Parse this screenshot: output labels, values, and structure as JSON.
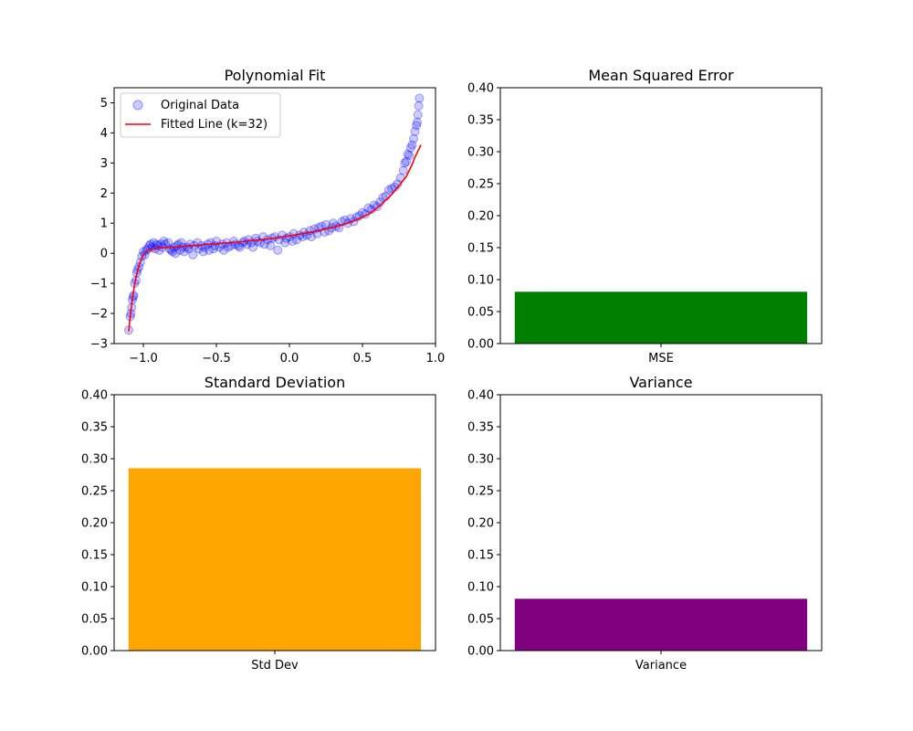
{
  "chart_data": [
    {
      "type": "scatter",
      "title": "Polynomial Fit",
      "xlabel": "",
      "ylabel": "",
      "xlim": [
        -1.2,
        1.0
      ],
      "ylim": [
        -3,
        5.5
      ],
      "xticks": [
        -1.0,
        -0.5,
        0.0,
        0.5,
        1.0
      ],
      "xtick_labels": [
        "−1.0",
        "−0.5",
        "0.0",
        "0.5",
        "1.0"
      ],
      "yticks": [
        -3,
        -2,
        -1,
        0,
        1,
        2,
        3,
        4,
        5
      ],
      "ytick_labels": [
        "−3",
        "−2",
        "−1",
        "0",
        "1",
        "2",
        "3",
        "4",
        "5"
      ],
      "grid": false,
      "legend": "upper-left",
      "series": [
        {
          "name": "Original Data",
          "kind": "scatter",
          "color": "#0000ff",
          "x": [
            -1.1,
            -1.09,
            -1.085,
            -1.08,
            -1.075,
            -1.07,
            -1.065,
            -1.06,
            -1.05,
            -1.045,
            -1.04,
            -1.03,
            -1.02,
            -1.01,
            -1.0,
            -0.99,
            -0.98,
            -0.97,
            -0.96,
            -0.95,
            -0.94,
            -0.93,
            -0.92,
            -0.91,
            -0.9,
            -0.89,
            -0.88,
            -0.87,
            -0.86,
            -0.85,
            -0.83,
            -0.82,
            -0.81,
            -0.8,
            -0.79,
            -0.78,
            -0.77,
            -0.76,
            -0.75,
            -0.74,
            -0.73,
            -0.72,
            -0.7,
            -0.69,
            -0.68,
            -0.66,
            -0.65,
            -0.63,
            -0.62,
            -0.6,
            -0.59,
            -0.58,
            -0.56,
            -0.55,
            -0.54,
            -0.52,
            -0.51,
            -0.5,
            -0.48,
            -0.46,
            -0.45,
            -0.43,
            -0.42,
            -0.4,
            -0.38,
            -0.37,
            -0.35,
            -0.34,
            -0.32,
            -0.31,
            -0.29,
            -0.28,
            -0.26,
            -0.25,
            -0.23,
            -0.22,
            -0.2,
            -0.18,
            -0.17,
            -0.15,
            -0.13,
            -0.12,
            -0.1,
            -0.08,
            -0.07,
            -0.05,
            -0.03,
            -0.02,
            0.0,
            0.02,
            0.03,
            0.05,
            0.07,
            0.09,
            0.1,
            0.12,
            0.14,
            0.15,
            0.17,
            0.19,
            0.2,
            0.22,
            0.24,
            0.25,
            0.27,
            0.29,
            0.3,
            0.32,
            0.34,
            0.36,
            0.38,
            0.4,
            0.42,
            0.44,
            0.46,
            0.48,
            0.5,
            0.52,
            0.54,
            0.56,
            0.58,
            0.6,
            0.62,
            0.64,
            0.66,
            0.68,
            0.7,
            0.72,
            0.74,
            0.76,
            0.78,
            0.79,
            0.8,
            0.81,
            0.82,
            0.83,
            0.84,
            0.85,
            0.86,
            0.87,
            0.875,
            0.88,
            0.885,
            0.89
          ],
          "y": [
            -2.55,
            -2.1,
            -2.0,
            -1.8,
            -1.55,
            -1.45,
            -1.4,
            -1.0,
            -0.9,
            -0.65,
            -0.55,
            -0.45,
            -0.3,
            -0.1,
            0.05,
            -0.05,
            0.1,
            0.15,
            0.25,
            0.3,
            0.2,
            0.35,
            0.15,
            0.3,
            0.25,
            0.1,
            0.3,
            0.2,
            0.4,
            0.3,
            0.35,
            0.15,
            0.1,
            0.05,
            0.2,
            0.0,
            0.25,
            0.3,
            0.1,
            0.35,
            0.2,
            0.05,
            0.2,
            0.15,
            0.3,
            -0.05,
            0.25,
            0.35,
            0.15,
            0.25,
            0.05,
            0.2,
            0.3,
            0.1,
            0.35,
            0.15,
            0.25,
            0.4,
            0.2,
            0.3,
            0.1,
            0.35,
            0.2,
            0.25,
            0.4,
            0.3,
            0.25,
            0.2,
            0.35,
            0.4,
            0.3,
            0.45,
            0.35,
            0.2,
            0.5,
            0.4,
            0.35,
            0.55,
            0.3,
            0.45,
            0.25,
            0.5,
            0.55,
            0.1,
            0.45,
            0.6,
            0.35,
            0.5,
            0.55,
            0.4,
            0.65,
            0.45,
            0.6,
            0.55,
            0.7,
            0.6,
            0.75,
            0.55,
            0.8,
            0.65,
            0.85,
            0.9,
            0.7,
            0.95,
            0.75,
            0.85,
            1.0,
            0.9,
            0.85,
            1.05,
            1.1,
            1.0,
            1.15,
            1.05,
            1.2,
            1.25,
            1.35,
            1.3,
            1.5,
            1.45,
            1.6,
            1.55,
            1.7,
            1.85,
            1.9,
            2.1,
            2.15,
            2.2,
            2.3,
            2.5,
            2.75,
            3.0,
            3.05,
            3.3,
            3.25,
            3.5,
            3.6,
            3.8,
            4.05,
            4.25,
            4.35,
            4.6,
            4.9,
            5.15
          ]
        },
        {
          "name": "Fitted Line (k=32)",
          "kind": "line",
          "color": "#ff0000",
          "x": [
            -1.1,
            -1.09,
            -1.08,
            -1.07,
            -1.06,
            -1.05,
            -1.04,
            -1.03,
            -1.02,
            -1.01,
            -1.0,
            -0.98,
            -0.95,
            -0.9,
            -0.85,
            -0.8,
            -0.7,
            -0.6,
            -0.5,
            -0.4,
            -0.3,
            -0.2,
            -0.1,
            0.0,
            0.1,
            0.2,
            0.3,
            0.4,
            0.5,
            0.55,
            0.6,
            0.65,
            0.7,
            0.75,
            0.8,
            0.82,
            0.84,
            0.86,
            0.88,
            0.9
          ],
          "y": [
            -2.6,
            -2.1,
            -1.7,
            -1.35,
            -1.05,
            -0.8,
            -0.6,
            -0.42,
            -0.28,
            -0.16,
            -0.05,
            0.05,
            0.13,
            0.17,
            0.19,
            0.2,
            0.24,
            0.28,
            0.32,
            0.35,
            0.4,
            0.45,
            0.5,
            0.58,
            0.66,
            0.75,
            0.86,
            1.0,
            1.2,
            1.32,
            1.5,
            1.72,
            1.95,
            2.25,
            2.55,
            2.75,
            2.95,
            3.2,
            3.4,
            3.6
          ]
        }
      ]
    },
    {
      "type": "bar",
      "title": "Mean Squared Error",
      "xlabel": "",
      "ylabel": "",
      "categories": [
        "MSE"
      ],
      "values": [
        0.081
      ],
      "color": "#008000",
      "ylim": [
        0,
        0.4
      ],
      "yticks": [
        0.0,
        0.05,
        0.1,
        0.15,
        0.2,
        0.25,
        0.3,
        0.35,
        0.4
      ],
      "ytick_labels": [
        "0.00",
        "0.05",
        "0.10",
        "0.15",
        "0.20",
        "0.25",
        "0.30",
        "0.35",
        "0.40"
      ],
      "grid": false
    },
    {
      "type": "bar",
      "title": "Standard Deviation",
      "xlabel": "",
      "ylabel": "",
      "categories": [
        "Std Dev"
      ],
      "values": [
        0.285
      ],
      "color": "#ffa500",
      "ylim": [
        0,
        0.4
      ],
      "yticks": [
        0.0,
        0.05,
        0.1,
        0.15,
        0.2,
        0.25,
        0.3,
        0.35,
        0.4
      ],
      "ytick_labels": [
        "0.00",
        "0.05",
        "0.10",
        "0.15",
        "0.20",
        "0.25",
        "0.30",
        "0.35",
        "0.40"
      ],
      "grid": false
    },
    {
      "type": "bar",
      "title": "Variance",
      "xlabel": "",
      "ylabel": "",
      "categories": [
        "Variance"
      ],
      "values": [
        0.081
      ],
      "color": "#800080",
      "ylim": [
        0,
        0.4
      ],
      "yticks": [
        0.0,
        0.05,
        0.1,
        0.15,
        0.2,
        0.25,
        0.3,
        0.35,
        0.4
      ],
      "ytick_labels": [
        "0.00",
        "0.05",
        "0.10",
        "0.15",
        "0.20",
        "0.25",
        "0.30",
        "0.35",
        "0.40"
      ],
      "grid": false
    }
  ]
}
